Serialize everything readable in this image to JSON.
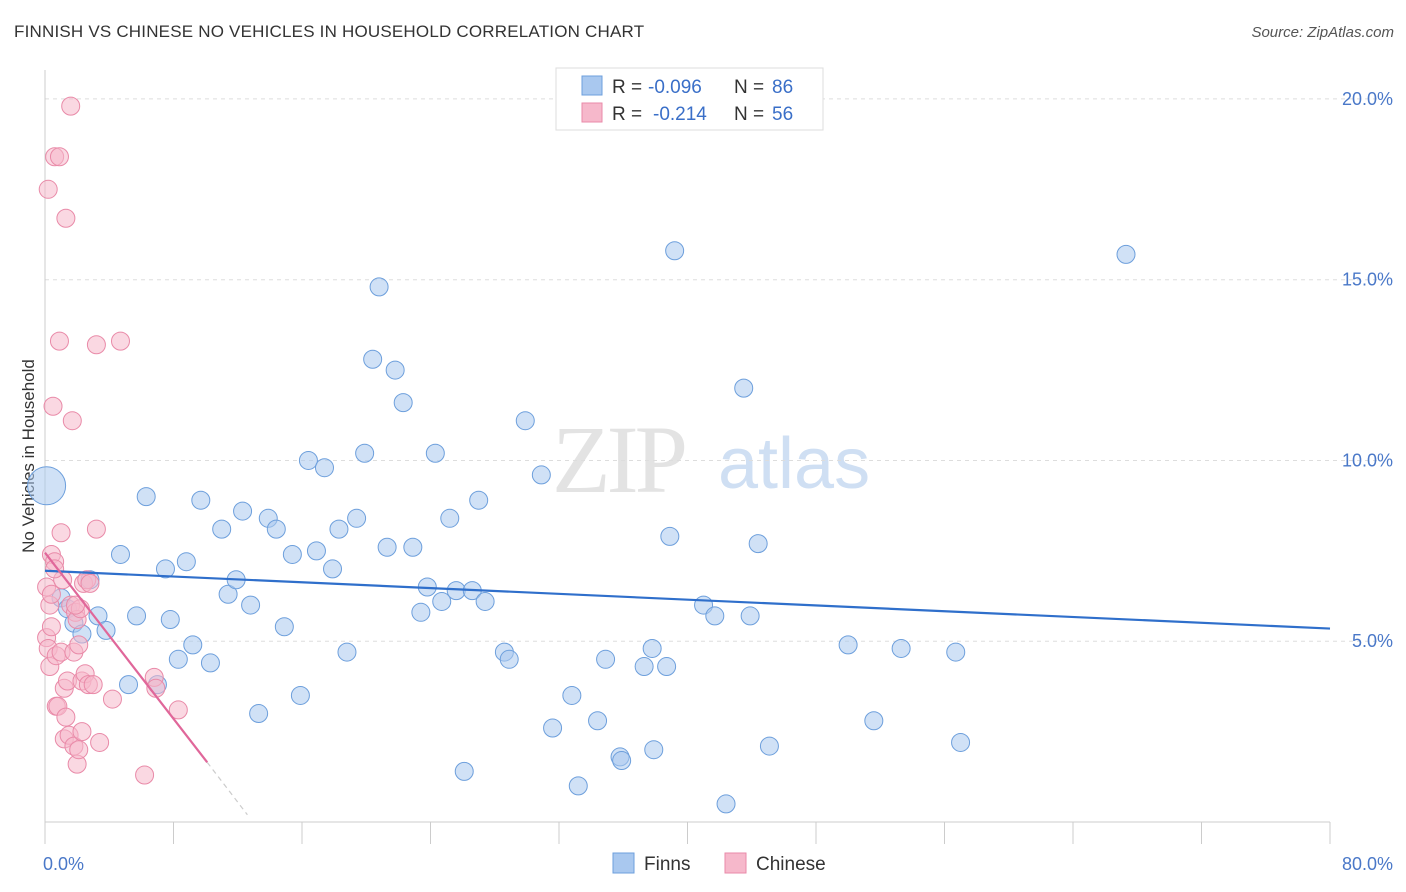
{
  "title": "FINNISH VS CHINESE NO VEHICLES IN HOUSEHOLD CORRELATION CHART",
  "source": "Source: ZipAtlas.com",
  "watermark": {
    "zip": "ZIP",
    "atlas": "atlas"
  },
  "colors": {
    "finns_fill": "#a9c8ef",
    "finns_stroke": "#6d9fdc",
    "finns_line": "#2f6fcb",
    "chinese_fill": "#f6b8cb",
    "chinese_stroke": "#e98aa8",
    "chinese_line": "#e0679a",
    "tick_text": "#4a78c8",
    "grid": "#dddddd"
  },
  "legend": {
    "rows": [
      {
        "r_label": "R =",
        "r_value": "-0.096",
        "n_label": "N =",
        "n_value": "86"
      },
      {
        "r_label": "R =",
        "r_value": "-0.214",
        "n_label": "N =",
        "n_value": "56"
      }
    ]
  },
  "bottom_legend": [
    "Finns",
    "Chinese"
  ],
  "chart_data": {
    "type": "scatter",
    "title": "FINNISH VS CHINESE NO VEHICLES IN HOUSEHOLD CORRELATION CHART",
    "xlabel": "",
    "ylabel": "No Vehicles in Household",
    "xlim": [
      0,
      80
    ],
    "ylim": [
      0,
      20.8
    ],
    "x_tick_labels": [
      {
        "value": 0,
        "label": "0.0%"
      },
      {
        "value": 80,
        "label": "80.0%"
      }
    ],
    "y_tick_labels": [
      {
        "value": 5,
        "label": "5.0%"
      },
      {
        "value": 10,
        "label": "10.0%"
      },
      {
        "value": 15,
        "label": "15.0%"
      },
      {
        "value": 20,
        "label": "20.0%"
      }
    ],
    "series": [
      {
        "name": "Finns",
        "r": -0.096,
        "n": 86,
        "trend": {
          "x": [
            0,
            80
          ],
          "y": [
            6.95,
            5.35
          ]
        },
        "points": [
          [
            0.1,
            9.3,
            3
          ],
          [
            1.0,
            6.2,
            1
          ],
          [
            1.4,
            5.9,
            1
          ],
          [
            1.8,
            5.5,
            1
          ],
          [
            2.3,
            5.2,
            1
          ],
          [
            2.8,
            6.7,
            1
          ],
          [
            3.3,
            5.7,
            1
          ],
          [
            3.8,
            5.3,
            1
          ],
          [
            4.7,
            7.4,
            1
          ],
          [
            5.2,
            3.8,
            1
          ],
          [
            5.7,
            5.7,
            1
          ],
          [
            6.3,
            9.0,
            1
          ],
          [
            7.0,
            3.8,
            1
          ],
          [
            7.5,
            7.0,
            1
          ],
          [
            7.8,
            5.6,
            1
          ],
          [
            8.3,
            4.5,
            1
          ],
          [
            8.8,
            7.2,
            1
          ],
          [
            9.2,
            4.9,
            1
          ],
          [
            9.7,
            8.9,
            1
          ],
          [
            10.3,
            4.4,
            1
          ],
          [
            11.0,
            8.1,
            1
          ],
          [
            11.4,
            6.3,
            1
          ],
          [
            11.9,
            6.7,
            1
          ],
          [
            12.3,
            8.6,
            1
          ],
          [
            12.8,
            6.0,
            1
          ],
          [
            13.3,
            3.0,
            1
          ],
          [
            13.9,
            8.4,
            1
          ],
          [
            14.4,
            8.1,
            1
          ],
          [
            14.9,
            5.4,
            1
          ],
          [
            15.4,
            7.4,
            1
          ],
          [
            15.9,
            3.5,
            1
          ],
          [
            16.4,
            10.0,
            1
          ],
          [
            16.9,
            7.5,
            1
          ],
          [
            17.4,
            9.8,
            1
          ],
          [
            17.9,
            7.0,
            1
          ],
          [
            18.3,
            8.1,
            1
          ],
          [
            18.8,
            4.7,
            1
          ],
          [
            19.4,
            8.4,
            1
          ],
          [
            19.9,
            10.2,
            1
          ],
          [
            20.4,
            12.8,
            1
          ],
          [
            20.8,
            14.8,
            1
          ],
          [
            21.3,
            7.6,
            1
          ],
          [
            21.8,
            12.5,
            1
          ],
          [
            22.3,
            11.6,
            1
          ],
          [
            22.9,
            7.6,
            1
          ],
          [
            23.4,
            5.8,
            1
          ],
          [
            23.8,
            6.5,
            1
          ],
          [
            24.3,
            10.2,
            1
          ],
          [
            24.7,
            6.1,
            1
          ],
          [
            25.2,
            8.4,
            1
          ],
          [
            25.6,
            6.4,
            1
          ],
          [
            26.1,
            1.4,
            1
          ],
          [
            26.6,
            6.4,
            1
          ],
          [
            27.0,
            8.9,
            1
          ],
          [
            27.4,
            6.1,
            1
          ],
          [
            28.6,
            4.7,
            1
          ],
          [
            28.9,
            4.5,
            1
          ],
          [
            29.9,
            11.1,
            1
          ],
          [
            30.9,
            9.6,
            1
          ],
          [
            31.6,
            2.6,
            1
          ],
          [
            32.8,
            3.5,
            1
          ],
          [
            33.2,
            1.0,
            1
          ],
          [
            34.4,
            2.8,
            1
          ],
          [
            34.9,
            4.5,
            1
          ],
          [
            35.8,
            1.8,
            1
          ],
          [
            35.9,
            1.7,
            1
          ],
          [
            37.3,
            4.3,
            1
          ],
          [
            37.8,
            4.8,
            1
          ],
          [
            37.9,
            2.0,
            1
          ],
          [
            38.7,
            4.3,
            1
          ],
          [
            38.9,
            7.9,
            1
          ],
          [
            39.2,
            15.8,
            1
          ],
          [
            41.0,
            6.0,
            1
          ],
          [
            41.7,
            5.7,
            1
          ],
          [
            42.4,
            0.5,
            1
          ],
          [
            43.5,
            12.0,
            1
          ],
          [
            43.9,
            5.7,
            1
          ],
          [
            44.4,
            7.7,
            1
          ],
          [
            45.1,
            2.1,
            1
          ],
          [
            50.0,
            4.9,
            1
          ],
          [
            51.6,
            2.8,
            1
          ],
          [
            53.3,
            4.8,
            1
          ],
          [
            56.7,
            4.7,
            1
          ],
          [
            57.0,
            2.2,
            1
          ],
          [
            67.3,
            15.7,
            1
          ]
        ]
      },
      {
        "name": "Chinese",
        "r": -0.214,
        "n": 56,
        "trend": {
          "x": [
            0,
            10.1
          ],
          "y": [
            7.45,
            1.65
          ]
        },
        "trend_dashed": {
          "x": [
            10.1,
            12.6
          ],
          "y": [
            1.65,
            0.2
          ]
        },
        "points": [
          [
            0.1,
            6.5,
            1
          ],
          [
            0.1,
            5.1,
            1
          ],
          [
            0.2,
            4.8,
            1
          ],
          [
            0.2,
            17.5,
            1
          ],
          [
            0.3,
            6.0,
            1
          ],
          [
            0.3,
            4.3,
            1
          ],
          [
            0.4,
            7.4,
            1
          ],
          [
            0.4,
            6.3,
            1
          ],
          [
            0.5,
            11.5,
            1
          ],
          [
            0.6,
            18.4,
            1
          ],
          [
            0.6,
            7.2,
            1
          ],
          [
            0.7,
            3.2,
            1
          ],
          [
            0.7,
            4.6,
            1
          ],
          [
            0.8,
            3.2,
            1
          ],
          [
            0.9,
            18.4,
            1
          ],
          [
            0.9,
            13.3,
            1
          ],
          [
            1.0,
            8.0,
            1
          ],
          [
            1.0,
            4.7,
            1
          ],
          [
            1.1,
            6.7,
            1
          ],
          [
            1.2,
            3.7,
            1
          ],
          [
            1.2,
            2.3,
            1
          ],
          [
            1.3,
            16.7,
            1
          ],
          [
            1.3,
            2.9,
            1
          ],
          [
            1.4,
            3.9,
            1
          ],
          [
            1.5,
            2.4,
            1
          ],
          [
            1.6,
            6.0,
            1
          ],
          [
            1.6,
            19.8,
            1
          ],
          [
            1.7,
            11.1,
            1
          ],
          [
            1.8,
            4.7,
            1
          ],
          [
            1.8,
            2.1,
            1
          ],
          [
            1.9,
            5.8,
            1
          ],
          [
            2.0,
            1.6,
            1
          ],
          [
            2.0,
            5.6,
            1
          ],
          [
            2.1,
            4.9,
            1
          ],
          [
            2.1,
            2.0,
            1
          ],
          [
            2.2,
            5.9,
            1
          ],
          [
            2.3,
            3.9,
            1
          ],
          [
            2.3,
            2.5,
            1
          ],
          [
            2.4,
            6.6,
            1
          ],
          [
            2.5,
            4.1,
            1
          ],
          [
            2.6,
            6.7,
            1
          ],
          [
            2.7,
            3.8,
            1
          ],
          [
            2.8,
            6.6,
            1
          ],
          [
            3.0,
            3.8,
            1
          ],
          [
            3.2,
            8.1,
            1
          ],
          [
            3.2,
            13.2,
            1
          ],
          [
            3.4,
            2.2,
            1
          ],
          [
            4.2,
            3.4,
            1
          ],
          [
            4.7,
            13.3,
            1
          ],
          [
            6.2,
            1.3,
            1
          ],
          [
            6.8,
            4.0,
            1
          ],
          [
            6.9,
            3.7,
            1
          ],
          [
            8.3,
            3.1,
            1
          ],
          [
            0.6,
            7.0,
            1
          ],
          [
            1.9,
            6.0,
            1
          ],
          [
            0.4,
            5.4,
            1
          ]
        ]
      }
    ]
  }
}
